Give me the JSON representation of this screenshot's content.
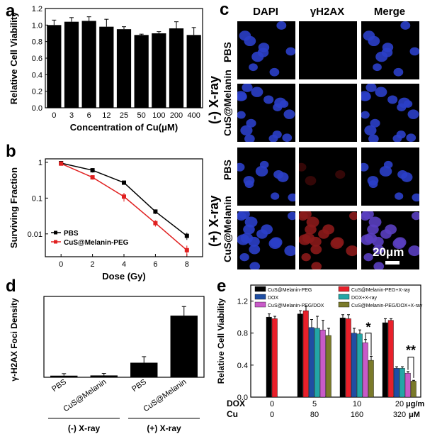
{
  "panels": {
    "a": "a",
    "b": "b",
    "c": "c",
    "d": "d",
    "e": "e"
  },
  "chart_data": [
    {
      "id": "a",
      "type": "bar",
      "categories": [
        "0",
        "3",
        "6",
        "12",
        "25",
        "50",
        "100",
        "200",
        "400"
      ],
      "values": [
        1.0,
        1.04,
        1.05,
        0.98,
        0.95,
        0.88,
        0.9,
        0.96,
        0.88
      ],
      "errors": [
        0.06,
        0.05,
        0.05,
        0.09,
        0.03,
        0.01,
        0.02,
        0.08,
        0.09
      ],
      "xlabel": "Concentration of Cu(μM)",
      "ylabel": "Relative Cell Viability",
      "ylim": [
        0,
        1.2
      ],
      "yticks": [
        "0.0",
        "0.2",
        "0.4",
        "0.6",
        "0.8",
        "1.0",
        "1.2"
      ],
      "color": "#000000"
    },
    {
      "id": "b",
      "type": "line",
      "x": [
        0,
        2,
        4,
        6,
        8
      ],
      "series": [
        {
          "name": "PBS",
          "values": [
            0.95,
            0.6,
            0.27,
            0.042,
            0.0088
          ],
          "errors": [
            0.1,
            0.08,
            0.03,
            0.006,
            0.002
          ],
          "color": "#000000"
        },
        {
          "name": "CuS@Melanin-PEG",
          "values": [
            0.92,
            0.38,
            0.11,
            0.02,
            0.0035
          ],
          "errors": [
            0.1,
            0.05,
            0.03,
            0.004,
            0.0012
          ],
          "color": "#e02020"
        }
      ],
      "xlabel": "Dose (Gy)",
      "ylabel": "Surviving Fraction",
      "xticks": [
        "0",
        "2",
        "4",
        "6",
        "8"
      ],
      "yticks": [
        "1",
        "0.1",
        "0.01"
      ],
      "yscale": "log",
      "legend": "bottom-left"
    },
    {
      "id": "d",
      "type": "bar",
      "categories": [
        "PBS",
        "CuS@Melanin",
        "PBS",
        "CuS@Melanin"
      ],
      "groups": [
        "(-) X-ray",
        "(+) X-ray"
      ],
      "values": [
        0.8,
        0.9,
        7.2,
        30.5
      ],
      "errors": [
        1.0,
        1.0,
        3.0,
        4.5
      ],
      "ylabel": "γ-H2AX Foci Density",
      "ylim": [
        0,
        40
      ],
      "color": "#000000"
    },
    {
      "id": "e",
      "type": "bar",
      "categories": [
        "0",
        "5",
        "10",
        "20"
      ],
      "cat_labels_dox": [
        "0",
        "5",
        "10",
        "20"
      ],
      "cat_labels_cu": [
        "0",
        "80",
        "160",
        "320"
      ],
      "row_dox": "DOX",
      "row_cu": "Cu",
      "unit_dox": "μg/ml",
      "unit_cu": "μM",
      "series": [
        {
          "name": "CuS@Melanin-PEG",
          "values": [
            1.0,
            1.04,
            0.99,
            0.93
          ],
          "errors": [
            0.04,
            0.04,
            0.04,
            0.05
          ],
          "color": "#000000"
        },
        {
          "name": "CuS@Melanin-PEG+X-ray",
          "values": [
            0.98,
            1.08,
            0.98,
            0.96
          ],
          "errors": [
            0.03,
            0.05,
            0.05,
            0.02
          ],
          "color": "#e8202a"
        },
        {
          "name": "DOX",
          "values": [
            null,
            0.87,
            0.8,
            0.36
          ],
          "errors": [
            null,
            0.1,
            0.06,
            0.02
          ],
          "color": "#1f4ea3"
        },
        {
          "name": "DOX+X-ray",
          "values": [
            null,
            0.86,
            0.79,
            0.36
          ],
          "errors": [
            null,
            0.15,
            0.05,
            0.02
          ],
          "color": "#23a6a6"
        },
        {
          "name": "CuS@Melanin-PEG/DOX",
          "values": [
            null,
            0.84,
            0.68,
            0.3
          ],
          "errors": [
            null,
            0.12,
            0.04,
            0.02
          ],
          "color": "#c85ac8"
        },
        {
          "name": "CuS@Melanin-PEG/DOX+X-ray",
          "values": [
            null,
            0.77,
            0.46,
            0.2
          ],
          "errors": [
            null,
            0.09,
            0.05,
            0.01
          ],
          "color": "#7a7a2a"
        }
      ],
      "ylabel": "Relative Cell Viability",
      "ylim": [
        0,
        1.4
      ],
      "yticks": [
        "0.0",
        "0.4",
        "0.8",
        "1.2"
      ],
      "significance": [
        "*",
        "**"
      ]
    }
  ],
  "panel_c": {
    "columns": [
      "DAPI",
      "γH2AX",
      "Merge"
    ],
    "group_labels": [
      "(-) X-ray",
      "(+) X-ray"
    ],
    "row_labels": [
      "PBS",
      "CuS@Melanin",
      "PBS",
      "CuS@Melanin"
    ],
    "scale_bar": "20μm"
  }
}
